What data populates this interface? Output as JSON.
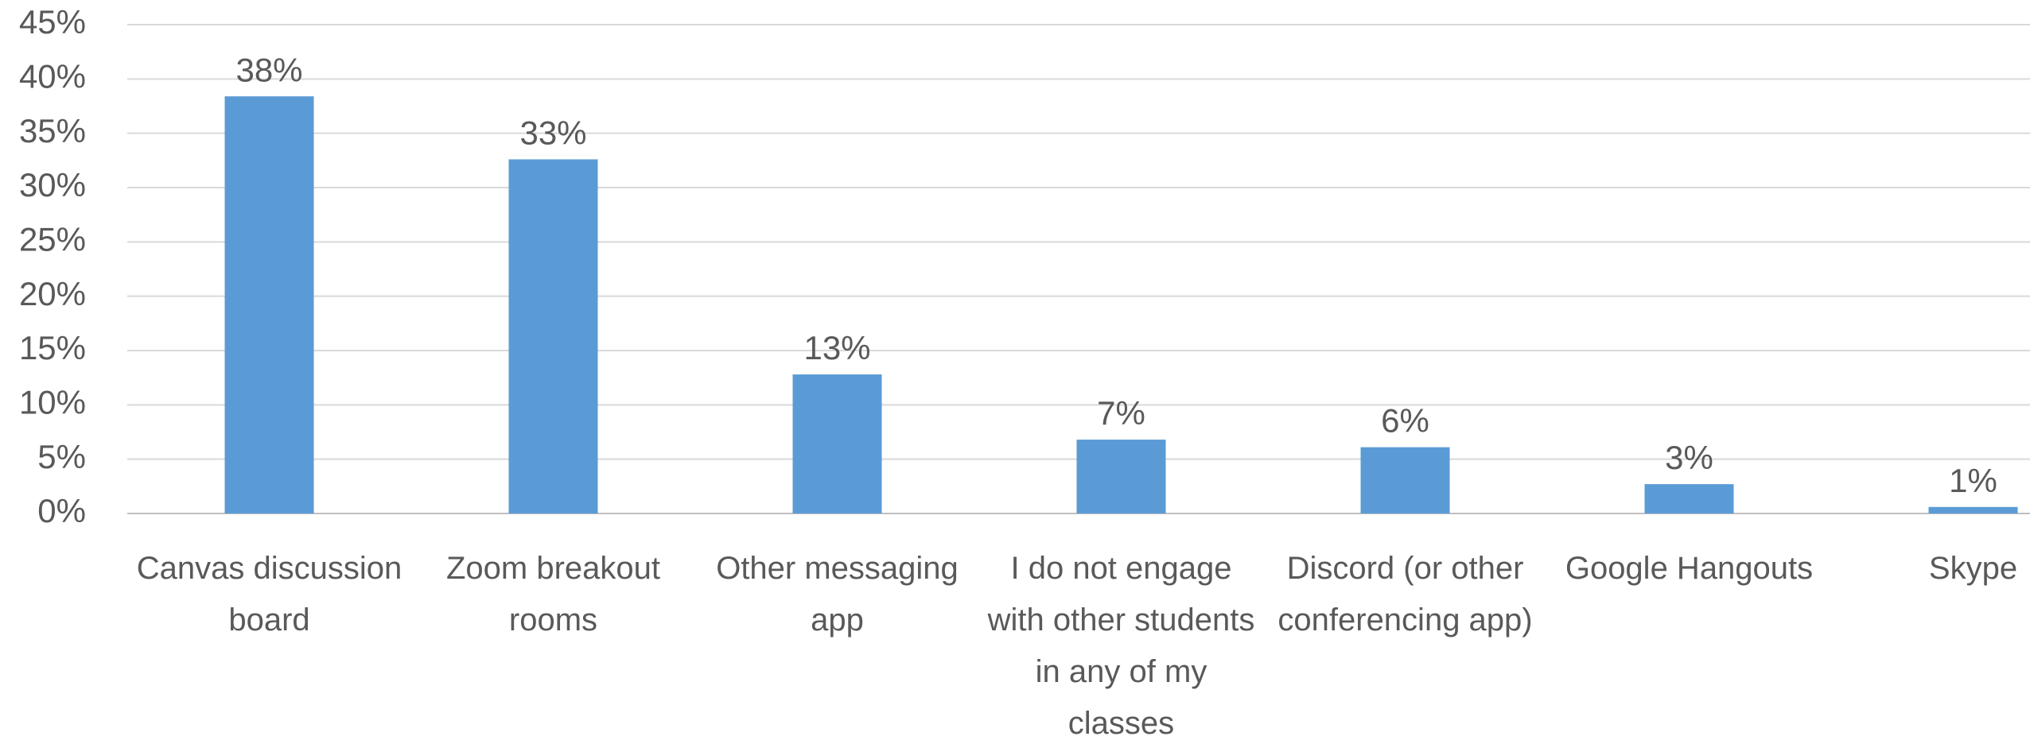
{
  "chart_data": {
    "type": "bar",
    "categories": [
      "Canvas discussion board",
      "Zoom breakout rooms",
      "Other messaging app",
      "I do not engage with other students in any of my classes",
      "Discord (or other conferencing app)",
      "Google Hangouts",
      "Skype"
    ],
    "values": [
      38.4,
      32.6,
      12.8,
      6.8,
      6.1,
      2.7,
      0.6
    ],
    "value_labels": [
      "38%",
      "33%",
      "13%",
      "7%",
      "6%",
      "3%",
      "1%"
    ],
    "color": "#5b9bd5",
    "ylim": [
      0,
      45
    ],
    "yticks": [
      {
        "value": 0,
        "label": "0%"
      },
      {
        "value": 5,
        "label": "5%"
      },
      {
        "value": 10,
        "label": "10%"
      },
      {
        "value": 15,
        "label": "15%"
      },
      {
        "value": 20,
        "label": "20%"
      },
      {
        "value": 25,
        "label": "25%"
      },
      {
        "value": 30,
        "label": "30%"
      },
      {
        "value": 35,
        "label": "35%"
      },
      {
        "value": 40,
        "label": "40%"
      },
      {
        "value": 45,
        "label": "45%"
      }
    ],
    "grid": true
  }
}
